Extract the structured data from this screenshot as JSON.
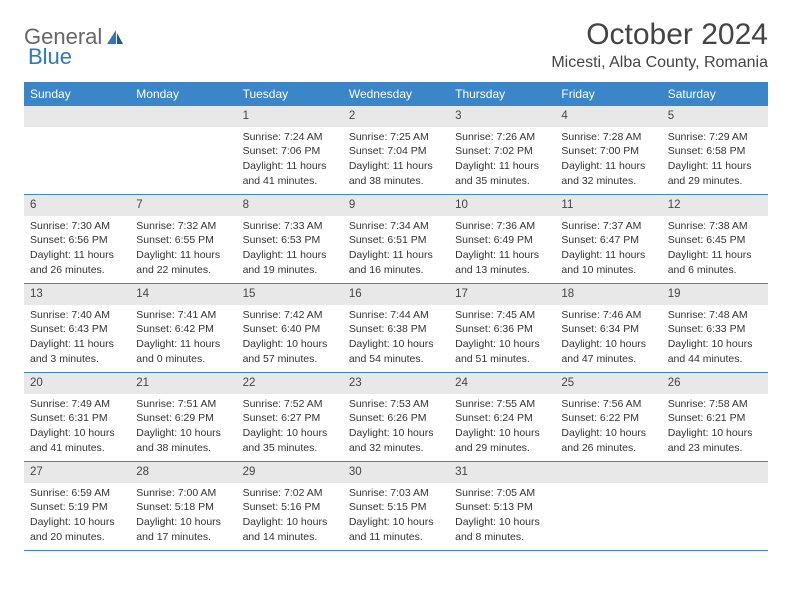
{
  "brand": {
    "part1": "General",
    "part2": "Blue"
  },
  "title": "October 2024",
  "location": "Micesti, Alba County, Romania",
  "colors": {
    "header_bg": "#3a86c8",
    "daynum_bg": "#e8e8e8",
    "week_border": "#3a86c8",
    "text": "#333333",
    "logo_blue": "#2f78bd"
  },
  "day_names": [
    "Sunday",
    "Monday",
    "Tuesday",
    "Wednesday",
    "Thursday",
    "Friday",
    "Saturday"
  ],
  "weeks": [
    [
      null,
      null,
      {
        "n": "1",
        "sr": "Sunrise: 7:24 AM",
        "ss": "Sunset: 7:06 PM",
        "d1": "Daylight: 11 hours",
        "d2": "and 41 minutes."
      },
      {
        "n": "2",
        "sr": "Sunrise: 7:25 AM",
        "ss": "Sunset: 7:04 PM",
        "d1": "Daylight: 11 hours",
        "d2": "and 38 minutes."
      },
      {
        "n": "3",
        "sr": "Sunrise: 7:26 AM",
        "ss": "Sunset: 7:02 PM",
        "d1": "Daylight: 11 hours",
        "d2": "and 35 minutes."
      },
      {
        "n": "4",
        "sr": "Sunrise: 7:28 AM",
        "ss": "Sunset: 7:00 PM",
        "d1": "Daylight: 11 hours",
        "d2": "and 32 minutes."
      },
      {
        "n": "5",
        "sr": "Sunrise: 7:29 AM",
        "ss": "Sunset: 6:58 PM",
        "d1": "Daylight: 11 hours",
        "d2": "and 29 minutes."
      }
    ],
    [
      {
        "n": "6",
        "sr": "Sunrise: 7:30 AM",
        "ss": "Sunset: 6:56 PM",
        "d1": "Daylight: 11 hours",
        "d2": "and 26 minutes."
      },
      {
        "n": "7",
        "sr": "Sunrise: 7:32 AM",
        "ss": "Sunset: 6:55 PM",
        "d1": "Daylight: 11 hours",
        "d2": "and 22 minutes."
      },
      {
        "n": "8",
        "sr": "Sunrise: 7:33 AM",
        "ss": "Sunset: 6:53 PM",
        "d1": "Daylight: 11 hours",
        "d2": "and 19 minutes."
      },
      {
        "n": "9",
        "sr": "Sunrise: 7:34 AM",
        "ss": "Sunset: 6:51 PM",
        "d1": "Daylight: 11 hours",
        "d2": "and 16 minutes."
      },
      {
        "n": "10",
        "sr": "Sunrise: 7:36 AM",
        "ss": "Sunset: 6:49 PM",
        "d1": "Daylight: 11 hours",
        "d2": "and 13 minutes."
      },
      {
        "n": "11",
        "sr": "Sunrise: 7:37 AM",
        "ss": "Sunset: 6:47 PM",
        "d1": "Daylight: 11 hours",
        "d2": "and 10 minutes."
      },
      {
        "n": "12",
        "sr": "Sunrise: 7:38 AM",
        "ss": "Sunset: 6:45 PM",
        "d1": "Daylight: 11 hours",
        "d2": "and 6 minutes."
      }
    ],
    [
      {
        "n": "13",
        "sr": "Sunrise: 7:40 AM",
        "ss": "Sunset: 6:43 PM",
        "d1": "Daylight: 11 hours",
        "d2": "and 3 minutes."
      },
      {
        "n": "14",
        "sr": "Sunrise: 7:41 AM",
        "ss": "Sunset: 6:42 PM",
        "d1": "Daylight: 11 hours",
        "d2": "and 0 minutes."
      },
      {
        "n": "15",
        "sr": "Sunrise: 7:42 AM",
        "ss": "Sunset: 6:40 PM",
        "d1": "Daylight: 10 hours",
        "d2": "and 57 minutes."
      },
      {
        "n": "16",
        "sr": "Sunrise: 7:44 AM",
        "ss": "Sunset: 6:38 PM",
        "d1": "Daylight: 10 hours",
        "d2": "and 54 minutes."
      },
      {
        "n": "17",
        "sr": "Sunrise: 7:45 AM",
        "ss": "Sunset: 6:36 PM",
        "d1": "Daylight: 10 hours",
        "d2": "and 51 minutes."
      },
      {
        "n": "18",
        "sr": "Sunrise: 7:46 AM",
        "ss": "Sunset: 6:34 PM",
        "d1": "Daylight: 10 hours",
        "d2": "and 47 minutes."
      },
      {
        "n": "19",
        "sr": "Sunrise: 7:48 AM",
        "ss": "Sunset: 6:33 PM",
        "d1": "Daylight: 10 hours",
        "d2": "and 44 minutes."
      }
    ],
    [
      {
        "n": "20",
        "sr": "Sunrise: 7:49 AM",
        "ss": "Sunset: 6:31 PM",
        "d1": "Daylight: 10 hours",
        "d2": "and 41 minutes."
      },
      {
        "n": "21",
        "sr": "Sunrise: 7:51 AM",
        "ss": "Sunset: 6:29 PM",
        "d1": "Daylight: 10 hours",
        "d2": "and 38 minutes."
      },
      {
        "n": "22",
        "sr": "Sunrise: 7:52 AM",
        "ss": "Sunset: 6:27 PM",
        "d1": "Daylight: 10 hours",
        "d2": "and 35 minutes."
      },
      {
        "n": "23",
        "sr": "Sunrise: 7:53 AM",
        "ss": "Sunset: 6:26 PM",
        "d1": "Daylight: 10 hours",
        "d2": "and 32 minutes."
      },
      {
        "n": "24",
        "sr": "Sunrise: 7:55 AM",
        "ss": "Sunset: 6:24 PM",
        "d1": "Daylight: 10 hours",
        "d2": "and 29 minutes."
      },
      {
        "n": "25",
        "sr": "Sunrise: 7:56 AM",
        "ss": "Sunset: 6:22 PM",
        "d1": "Daylight: 10 hours",
        "d2": "and 26 minutes."
      },
      {
        "n": "26",
        "sr": "Sunrise: 7:58 AM",
        "ss": "Sunset: 6:21 PM",
        "d1": "Daylight: 10 hours",
        "d2": "and 23 minutes."
      }
    ],
    [
      {
        "n": "27",
        "sr": "Sunrise: 6:59 AM",
        "ss": "Sunset: 5:19 PM",
        "d1": "Daylight: 10 hours",
        "d2": "and 20 minutes."
      },
      {
        "n": "28",
        "sr": "Sunrise: 7:00 AM",
        "ss": "Sunset: 5:18 PM",
        "d1": "Daylight: 10 hours",
        "d2": "and 17 minutes."
      },
      {
        "n": "29",
        "sr": "Sunrise: 7:02 AM",
        "ss": "Sunset: 5:16 PM",
        "d1": "Daylight: 10 hours",
        "d2": "and 14 minutes."
      },
      {
        "n": "30",
        "sr": "Sunrise: 7:03 AM",
        "ss": "Sunset: 5:15 PM",
        "d1": "Daylight: 10 hours",
        "d2": "and 11 minutes."
      },
      {
        "n": "31",
        "sr": "Sunrise: 7:05 AM",
        "ss": "Sunset: 5:13 PM",
        "d1": "Daylight: 10 hours",
        "d2": "and 8 minutes."
      },
      null,
      null
    ]
  ]
}
